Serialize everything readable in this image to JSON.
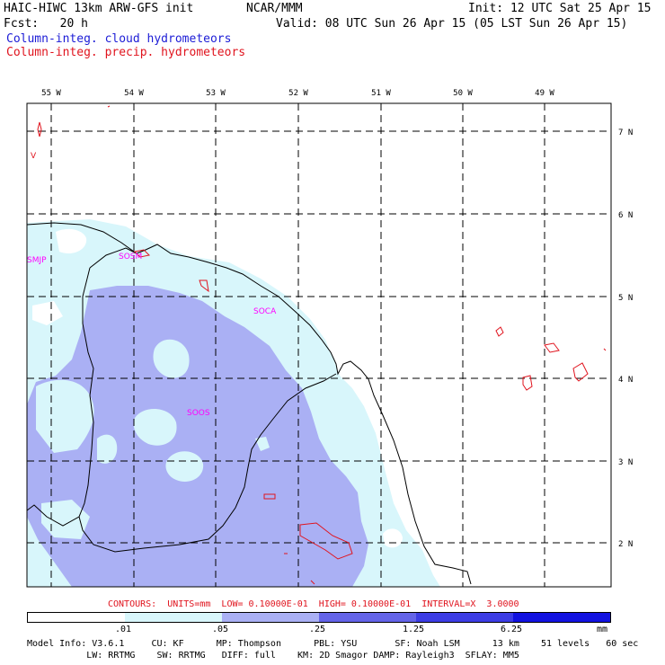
{
  "header": {
    "title_left": "HAIC-HIWC 13km ARW-GFS init",
    "title_center": "NCAR/MMM",
    "init_text": "Init: 12 UTC Sat 25 Apr 15",
    "fcst_text": "Fcst:   20 h",
    "valid_text": "Valid: 08 UTC Sun 26 Apr 15 (05 LST Sun 26 Apr 15)",
    "legend_cloud": "Column-integ. cloud hydrometeors",
    "legend_precip": "Column-integ. precip. hydrometeors"
  },
  "colors": {
    "cloud_line": "#1c1cd6",
    "precip_line": "#e0141e",
    "station_label": "#ff00ff",
    "shade_1": "#d8f6fb",
    "shade_2": "#aab0f4",
    "shade_3": "#8a8cf0",
    "shade_4": "#6464e8",
    "shade_5": "#3c3ce4",
    "shade_6": "#1212e0"
  },
  "map": {
    "lon_labels": [
      "55 W",
      "54 W",
      "53 W",
      "52 W",
      "51 W",
      "50 W",
      "49 W"
    ],
    "lat_labels": [
      "7 N",
      "6 N",
      "5 N",
      "4 N",
      "3 N",
      "2 N"
    ],
    "stations": [
      "SMJP",
      "SOSM",
      "SOCA",
      "SOOS"
    ],
    "station_v": "V"
  },
  "footer": {
    "contours": "CONTOURS:  UNITS=mm  LOW= 0.10000E-01  HIGH= 0.10000E-01  INTERVAL=X  3.0000",
    "colorbar_ticks": [
      ".01",
      ".05",
      ".25",
      "1.25",
      "6.25"
    ],
    "colorbar_units": "mm",
    "model_line1": "Model Info: V3.6.1     CU: KF      MP: Thompson      PBL: YSU       SF: Noah LSM      13 km    51 levels   60 sec",
    "model_line2": "           LW: RRTMG    SW: RRTMG   DIFF: full    KM: 2D Smagor DAMP: Rayleigh3  SFLAY: MM5"
  }
}
